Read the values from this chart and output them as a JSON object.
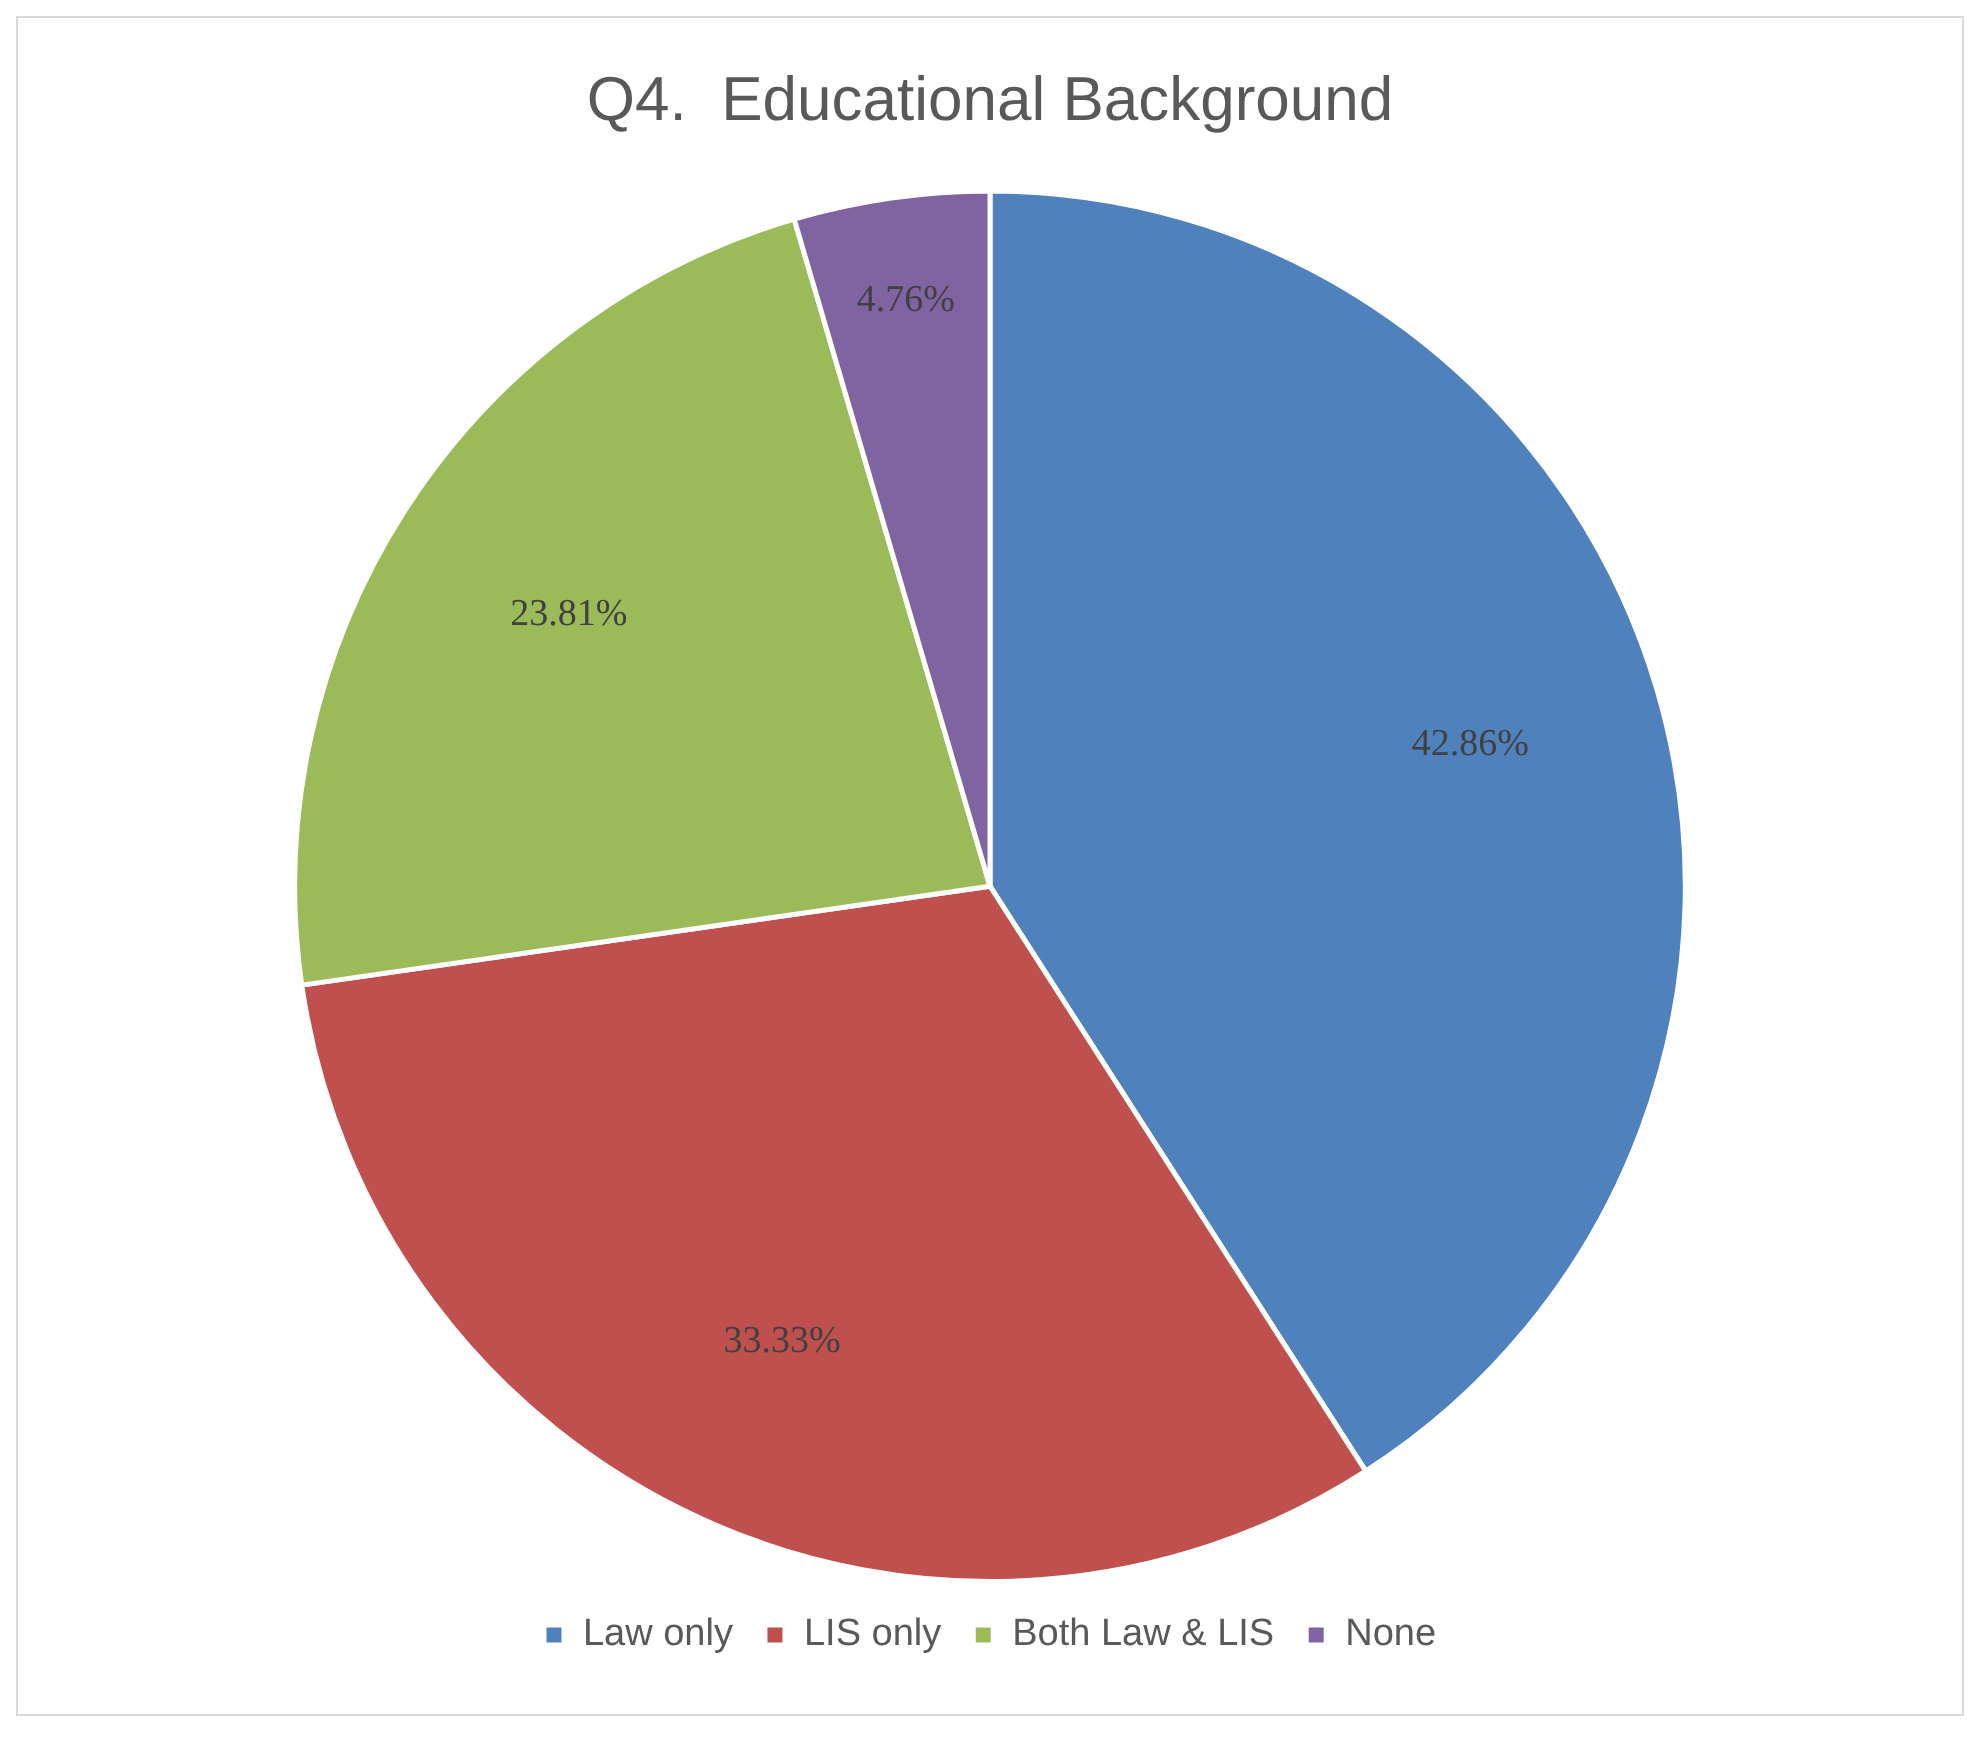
{
  "chart_data": {
    "type": "pie",
    "title": "Q4.  Educational Background",
    "categories": [
      "Law only",
      "LIS only",
      "Both Law & LIS",
      "None"
    ],
    "values": [
      42.86,
      33.33,
      23.81,
      4.76
    ],
    "value_labels": [
      "42.86%",
      "33.33%",
      "23.81%",
      "4.76%"
    ],
    "colors": [
      "#4f81bd",
      "#c0504d",
      "#9bbb59",
      "#8064a2"
    ],
    "legend": "bottom"
  }
}
